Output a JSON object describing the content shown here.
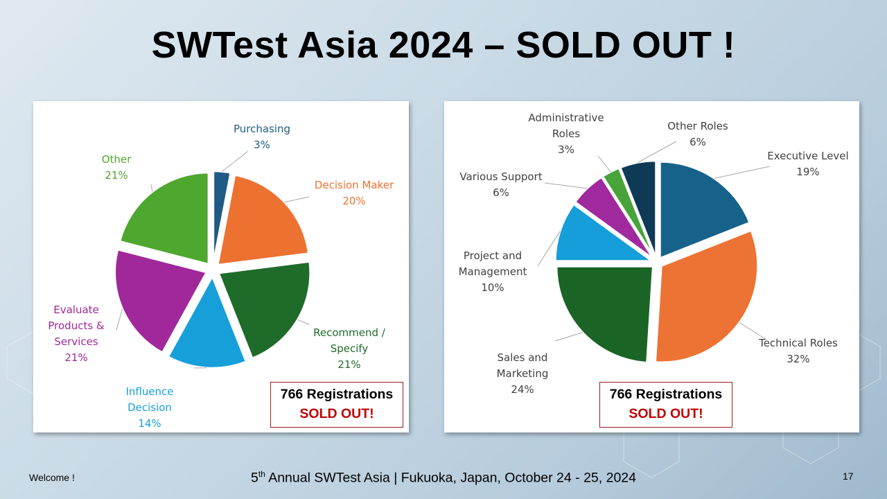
{
  "slide": {
    "title": "SWTest Asia 2024 – SOLD OUT !",
    "footer_left": "Welcome !",
    "footer_center_ordinal": "5",
    "footer_center_sup": "th",
    "footer_center_rest": " Annual SWTest Asia | Fukuoka, Japan, October 24 - 25, 2024",
    "page_number": "17"
  },
  "registration_box": {
    "line1": "766 Registrations",
    "line2": "SOLD OUT!"
  },
  "chart_data": [
    {
      "type": "pie",
      "title": "",
      "exploded": true,
      "slices": [
        {
          "label": [
            "Purchasing"
          ],
          "value": 3,
          "pct_label": "3%",
          "color": "#1f5b84"
        },
        {
          "label": [
            "Decision Maker"
          ],
          "value": 20,
          "pct_label": "20%",
          "color": "#ed7130"
        },
        {
          "label": [
            "Recommend /",
            "Specify"
          ],
          "value": 21,
          "pct_label": "21%",
          "color": "#1e6b2a"
        },
        {
          "label": [
            "Influence",
            "Decision"
          ],
          "value": 14,
          "pct_label": "14%",
          "color": "#179fda"
        },
        {
          "label": [
            "Evaluate",
            "Products &",
            "Services"
          ],
          "value": 21,
          "pct_label": "21%",
          "color": "#a0289a"
        },
        {
          "label": [
            "Other"
          ],
          "value": 21,
          "pct_label": "21%",
          "color": "#4ea72e"
        }
      ]
    },
    {
      "type": "pie",
      "title": "",
      "exploded": true,
      "slices": [
        {
          "label": [
            "Executive Level"
          ],
          "value": 19,
          "pct_label": "19%",
          "color": "#17628a"
        },
        {
          "label": [
            "Technical Roles"
          ],
          "value": 32,
          "pct_label": "32%",
          "color": "#ec7333"
        },
        {
          "label": [
            "Sales and",
            "Marketing"
          ],
          "value": 24,
          "pct_label": "24%",
          "color": "#1a6426"
        },
        {
          "label": [
            "Project and",
            "Management"
          ],
          "value": 10,
          "pct_label": "10%",
          "color": "#159ed9"
        },
        {
          "label": [
            "Various Support"
          ],
          "value": 6,
          "pct_label": "6%",
          "color": "#a02a9d"
        },
        {
          "label": [
            "Administrative",
            "Roles"
          ],
          "value": 3,
          "pct_label": "3%",
          "color": "#47a33a"
        },
        {
          "label": [
            "Other Roles"
          ],
          "value": 6,
          "pct_label": "6%",
          "color": "#0e3a55"
        }
      ]
    }
  ]
}
